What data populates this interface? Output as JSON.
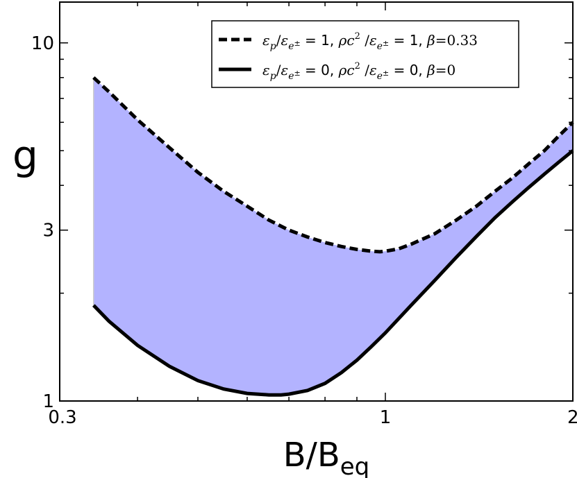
{
  "chart_data": {
    "type": "area",
    "xlabel_main": "B/B",
    "xlabel_sub": "eq",
    "ylabel": "g",
    "xscale": "log",
    "yscale": "log",
    "xlim": [
      0.3,
      2.0
    ],
    "ylim": [
      1.0,
      13.0
    ],
    "x_ticks": [
      {
        "value": 0.3,
        "label": "0.3"
      },
      {
        "value": 1.0,
        "label": "1"
      },
      {
        "value": 2.0,
        "label": "2"
      }
    ],
    "y_ticks": [
      {
        "value": 1.0,
        "label": "1"
      },
      {
        "value": 3.0,
        "label": "3"
      },
      {
        "value": 10.0,
        "label": "10"
      }
    ],
    "legend_position": "top-right",
    "fill_color": "#b3b3ff",
    "series": [
      {
        "label_parts": [
          {
            "t": "ε",
            "i": true
          },
          {
            "t": "p",
            "sub": true,
            "i": true
          },
          {
            "t": "/",
            "i": false
          },
          {
            "t": "ε",
            "i": true
          },
          {
            "t": "e",
            "sub": true,
            "i": true
          },
          {
            "t": "±",
            "subsup": true,
            "i": false
          },
          {
            "t": " = 1, ",
            "sans": true
          },
          {
            "t": "ρc",
            "i": true
          },
          {
            "t": "2",
            "sup": true
          },
          {
            "t": " /",
            "i": false
          },
          {
            "t": "ε",
            "i": true
          },
          {
            "t": "e",
            "sub": true,
            "i": true
          },
          {
            "t": "±",
            "subsup": true,
            "i": false
          },
          {
            "t": " = 1, ",
            "sans": true
          },
          {
            "t": "β",
            "i": true
          },
          {
            "t": "=0.33",
            "i": false
          }
        ],
        "style": "dashed",
        "color": "#000000",
        "x": [
          0.34,
          0.36,
          0.4,
          0.45,
          0.5,
          0.55,
          0.6,
          0.65,
          0.7,
          0.75,
          0.8,
          0.85,
          0.9,
          0.95,
          0.98,
          1.0,
          1.05,
          1.1,
          1.2,
          1.3,
          1.4,
          1.5,
          1.6,
          1.7,
          1.8,
          1.9,
          2.0
        ],
        "y": [
          8.0,
          7.3,
          6.1,
          5.1,
          4.35,
          3.85,
          3.5,
          3.2,
          3.0,
          2.87,
          2.77,
          2.7,
          2.65,
          2.62,
          2.61,
          2.62,
          2.66,
          2.74,
          2.93,
          3.2,
          3.5,
          3.85,
          4.2,
          4.6,
          5.0,
          5.5,
          6.0
        ]
      },
      {
        "label_parts": [
          {
            "t": "ε",
            "i": true
          },
          {
            "t": "p",
            "sub": true,
            "i": true
          },
          {
            "t": "/",
            "i": false
          },
          {
            "t": "ε",
            "i": true
          },
          {
            "t": "e",
            "sub": true,
            "i": true
          },
          {
            "t": "±",
            "subsup": true,
            "i": false
          },
          {
            "t": " = 0, ",
            "sans": true
          },
          {
            "t": "ρc",
            "i": true
          },
          {
            "t": "2",
            "sup": true
          },
          {
            "t": " /",
            "i": false
          },
          {
            "t": "ε",
            "i": true
          },
          {
            "t": "e",
            "sub": true,
            "i": true
          },
          {
            "t": "±",
            "subsup": true,
            "i": false
          },
          {
            "t": " = 0, ",
            "sans": true
          },
          {
            "t": "β",
            "i": true
          },
          {
            "t": "=0",
            "i": false
          }
        ],
        "style": "solid",
        "color": "#000000",
        "x": [
          0.34,
          0.36,
          0.4,
          0.45,
          0.5,
          0.55,
          0.6,
          0.65,
          0.68,
          0.7,
          0.75,
          0.8,
          0.85,
          0.9,
          0.95,
          1.0,
          1.1,
          1.2,
          1.3,
          1.4,
          1.5,
          1.6,
          1.7,
          1.8,
          1.9,
          2.0
        ],
        "y": [
          1.85,
          1.67,
          1.43,
          1.25,
          1.14,
          1.08,
          1.05,
          1.04,
          1.04,
          1.045,
          1.07,
          1.12,
          1.2,
          1.3,
          1.42,
          1.55,
          1.85,
          2.17,
          2.52,
          2.88,
          3.25,
          3.6,
          3.95,
          4.3,
          4.65,
          5.0
        ]
      }
    ]
  }
}
